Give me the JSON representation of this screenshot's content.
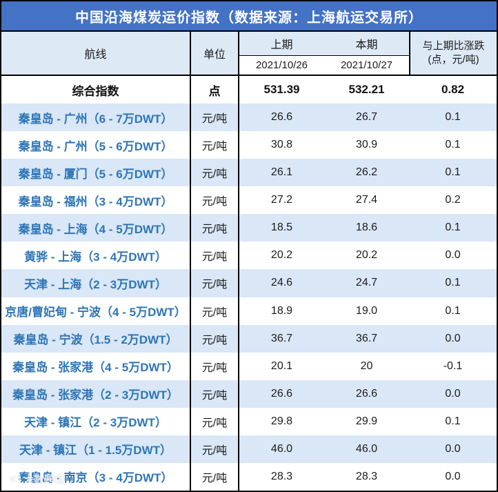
{
  "chart_data": {
    "type": "table",
    "title": "中国沿海煤炭运价指数（数据来源：上海航运交易所）",
    "header": {
      "route": "航线",
      "unit": "单位",
      "prev_label": "上期",
      "curr_label": "本期",
      "prev_date": "2021/10/26",
      "curr_date": "2021/10/27",
      "change_label_line1": "与上期比涨跌",
      "change_label_line2": "(点，元/吨)"
    },
    "summary": {
      "route": "综合指数",
      "unit": "点",
      "prev": "531.39",
      "curr": "532.21",
      "change": "0.82"
    },
    "rows": [
      {
        "route": "秦皇岛 - 广州（6 - 7万DWT）",
        "unit": "元/吨",
        "prev": "26.6",
        "curr": "26.7",
        "change": "0.1"
      },
      {
        "route": "秦皇岛 - 广州（5 - 6万DWT）",
        "unit": "元/吨",
        "prev": "30.8",
        "curr": "30.9",
        "change": "0.1"
      },
      {
        "route": "秦皇岛 - 厦门（5 - 6万DWT）",
        "unit": "元/吨",
        "prev": "26.1",
        "curr": "26.2",
        "change": "0.1"
      },
      {
        "route": "秦皇岛 - 福州（3 - 4万DWT）",
        "unit": "元/吨",
        "prev": "27.2",
        "curr": "27.4",
        "change": "0.2"
      },
      {
        "route": "秦皇岛 - 上海（4 - 5万DWT）",
        "unit": "元/吨",
        "prev": "18.5",
        "curr": "18.6",
        "change": "0.1"
      },
      {
        "route": "黄骅 - 上海（3 - 4万DWT）",
        "unit": "元/吨",
        "prev": "20.2",
        "curr": "20.2",
        "change": "0.0"
      },
      {
        "route": "天津 - 上海（2 - 3万DWT）",
        "unit": "元/吨",
        "prev": "24.6",
        "curr": "24.7",
        "change": "0.1"
      },
      {
        "route": "京唐/曹妃甸 - 宁波（4 - 5万DWT）",
        "unit": "元/吨",
        "prev": "18.9",
        "curr": "19.0",
        "change": "0.1"
      },
      {
        "route": "秦皇岛 - 宁波（1.5 - 2万DWT）",
        "unit": "元/吨",
        "prev": "36.7",
        "curr": "36.7",
        "change": "0.0"
      },
      {
        "route": "秦皇岛 - 张家港（4 - 5万DWT）",
        "unit": "元/吨",
        "prev": "20.1",
        "curr": "20",
        "change": "-0.1"
      },
      {
        "route": "秦皇岛 - 张家港（2 - 3万DWT）",
        "unit": "元/吨",
        "prev": "26.6",
        "curr": "26.6",
        "change": "0.0"
      },
      {
        "route": "天津 - 镇江（2 - 3万DWT）",
        "unit": "元/吨",
        "prev": "29.8",
        "curr": "29.9",
        "change": "0.1"
      },
      {
        "route": "天津 - 镇江（1 - 1.5万DWT）",
        "unit": "元/吨",
        "prev": "46.0",
        "curr": "46.0",
        "change": "0.0"
      },
      {
        "route": "秦皇岛 - 南京（3 - 4万DWT）",
        "unit": "元/吨",
        "prev": "28.3",
        "curr": "28.3",
        "change": "0.0"
      }
    ]
  },
  "watermark": {
    "logo": "IC",
    "text": "大数跨境"
  },
  "colors": {
    "title_bg": "#4472C4",
    "title_text": "#FFFFFF",
    "header_bg": "#DEE9F6",
    "alt_row_bg": "#D9E7F6",
    "row_bg": "#FFFFFF",
    "route_text": "#2E75B6",
    "border": "#000000"
  }
}
